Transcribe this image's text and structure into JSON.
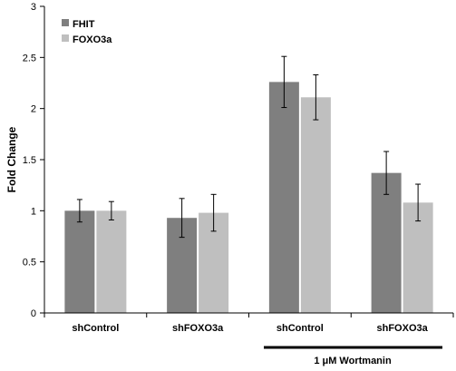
{
  "chart_data": {
    "type": "bar",
    "title": "",
    "xlabel": "",
    "ylabel": "Fold Change",
    "ylim": [
      0,
      3
    ],
    "yticks": [
      "0",
      "0.5",
      "1",
      "1.5",
      "2",
      "2.5",
      "3"
    ],
    "grid": false,
    "legend_position": "top-left",
    "categories": [
      "shControl",
      "shFOXO3a",
      "shControl",
      "shFOXO3a"
    ],
    "series": [
      {
        "name": "FHIT",
        "color": "#7f7f7f",
        "values": [
          1.0,
          0.93,
          2.26,
          1.37
        ],
        "errors": [
          0.11,
          0.19,
          0.25,
          0.21
        ]
      },
      {
        "name": "FOXO3a",
        "color": "#bfbfbf",
        "values": [
          1.0,
          0.98,
          2.11,
          1.08
        ],
        "errors": [
          0.09,
          0.18,
          0.22,
          0.18
        ]
      }
    ],
    "group_annotation": {
      "label": "1 μM Wortmanin",
      "categories": [
        2,
        3
      ]
    }
  }
}
